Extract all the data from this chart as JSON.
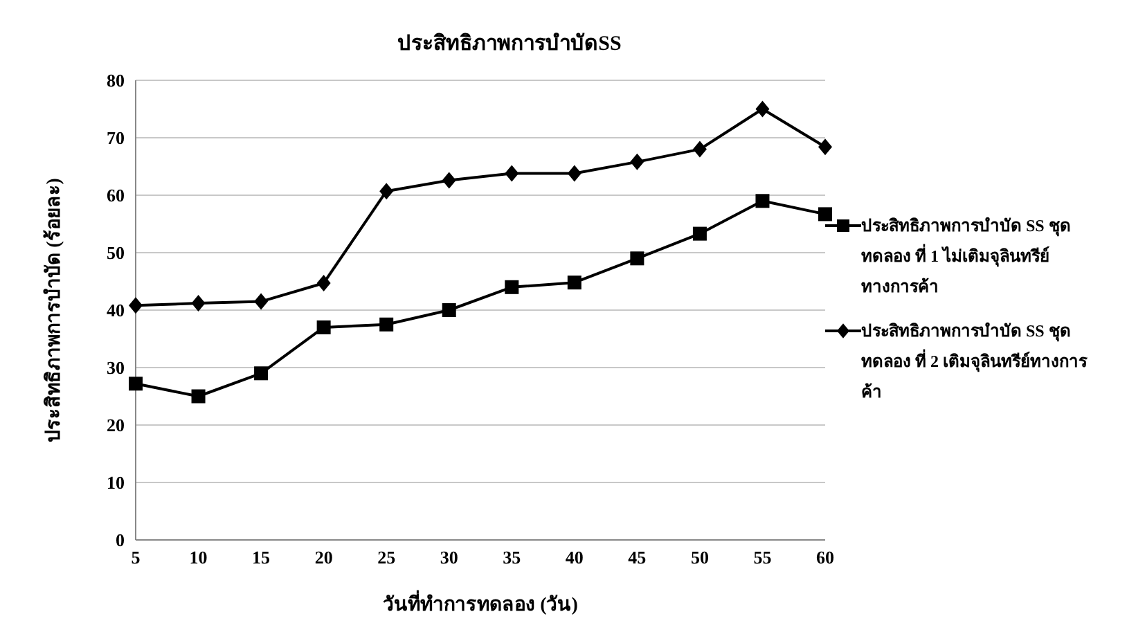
{
  "chart_data": {
    "type": "line",
    "title": "ประสิทธิภาพการบำบัดSS",
    "xlabel": "วันที่ทำการทดลอง (วัน)",
    "ylabel": "ประสิทธิภาพการบำบัด (ร้อยละ)",
    "categories": [
      "5",
      "10",
      "15",
      "20",
      "25",
      "30",
      "35",
      "40",
      "45",
      "50",
      "55",
      "60"
    ],
    "series": [
      {
        "name": "ประสิทธิภาพการบำบัด SS ชุดทดลอง ที่ 1 ไม่เติมจุลินทรีย์ทางการค้า",
        "color": "#000000",
        "marker": "square",
        "values": [
          27.2,
          25,
          29,
          37,
          37.5,
          40,
          44,
          44.8,
          49,
          53.3,
          59,
          56.7
        ]
      },
      {
        "name": "ประสิทธิภาพการบำบัด SS ชุดทดลอง ที่ 2 เติมจุลินทรีย์ทางการค้า",
        "color": "#000000",
        "marker": "diamond",
        "values": [
          40.8,
          41.2,
          41.5,
          44.7,
          60.7,
          62.6,
          63.8,
          63.8,
          65.8,
          68,
          75,
          68.4
        ]
      }
    ],
    "ylim": [
      0,
      80
    ],
    "yticks": [
      0,
      10,
      20,
      30,
      40,
      50,
      60,
      70,
      80
    ],
    "grid": "y",
    "legend": "right",
    "line_style": "solid"
  }
}
